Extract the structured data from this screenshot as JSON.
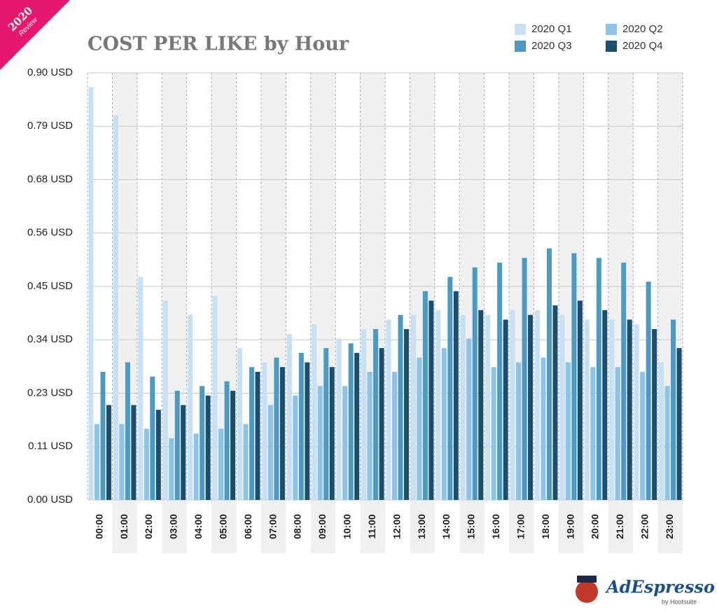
{
  "badge": {
    "year": "2020",
    "label": "Review"
  },
  "logo": {
    "name": "AdEspresso",
    "by": "by Hootsuite"
  },
  "chart_data": {
    "type": "bar",
    "title": "COST PER LIKE by Hour",
    "categories": [
      "00:00",
      "01:00",
      "02:00",
      "03:00",
      "04:00",
      "05:00",
      "06:00",
      "07:00",
      "08:00",
      "09:00",
      "10:00",
      "11:00",
      "12:00",
      "13:00",
      "14:00",
      "15:00",
      "16:00",
      "17:00",
      "18:00",
      "19:00",
      "20:00",
      "21:00",
      "22:00",
      "23:00"
    ],
    "series": [
      {
        "name": "2020 Q1",
        "color": "#c6e0f5",
        "values": [
          0.87,
          0.81,
          0.47,
          0.42,
          0.39,
          0.43,
          0.32,
          0.29,
          0.35,
          0.37,
          0.34,
          0.36,
          0.38,
          0.39,
          0.4,
          0.39,
          0.39,
          0.4,
          0.4,
          0.39,
          0.38,
          0.38,
          0.37,
          0.29
        ]
      },
      {
        "name": "2020 Q2",
        "color": "#8dc3e8",
        "values": [
          0.16,
          0.16,
          0.15,
          0.13,
          0.14,
          0.15,
          0.16,
          0.2,
          0.22,
          0.24,
          0.24,
          0.27,
          0.27,
          0.3,
          0.32,
          0.34,
          0.28,
          0.29,
          0.3,
          0.29,
          0.28,
          0.28,
          0.27,
          0.24
        ]
      },
      {
        "name": "2020 Q3",
        "color": "#4a9ac4",
        "values": [
          0.27,
          0.29,
          0.26,
          0.23,
          0.24,
          0.25,
          0.28,
          0.3,
          0.31,
          0.32,
          0.33,
          0.36,
          0.39,
          0.44,
          0.47,
          0.49,
          0.5,
          0.51,
          0.53,
          0.52,
          0.51,
          0.5,
          0.46,
          0.38
        ]
      },
      {
        "name": "2020 Q4",
        "color": "#1b4f72",
        "values": [
          0.2,
          0.2,
          0.19,
          0.2,
          0.22,
          0.23,
          0.27,
          0.28,
          0.29,
          0.28,
          0.31,
          0.32,
          0.36,
          0.42,
          0.44,
          0.4,
          0.38,
          0.39,
          0.41,
          0.42,
          0.4,
          0.38,
          0.36,
          0.32
        ]
      }
    ],
    "ylim": [
      0,
      0.9
    ],
    "yticks": [
      {
        "value": 0,
        "label": "0.00 USD"
      },
      {
        "value": 0.1125,
        "label": "0.11 USD"
      },
      {
        "value": 0.225,
        "label": "0.23 USD"
      },
      {
        "value": 0.3375,
        "label": "0.34 USD"
      },
      {
        "value": 0.45,
        "label": "0.45 USD"
      },
      {
        "value": 0.5625,
        "label": "0.56 USD"
      },
      {
        "value": 0.675,
        "label": "0.68 USD"
      },
      {
        "value": 0.7875,
        "label": "0.79 USD"
      },
      {
        "value": 0.9,
        "label": "0.90 USD"
      }
    ],
    "grid": true,
    "legend": "top-right"
  }
}
